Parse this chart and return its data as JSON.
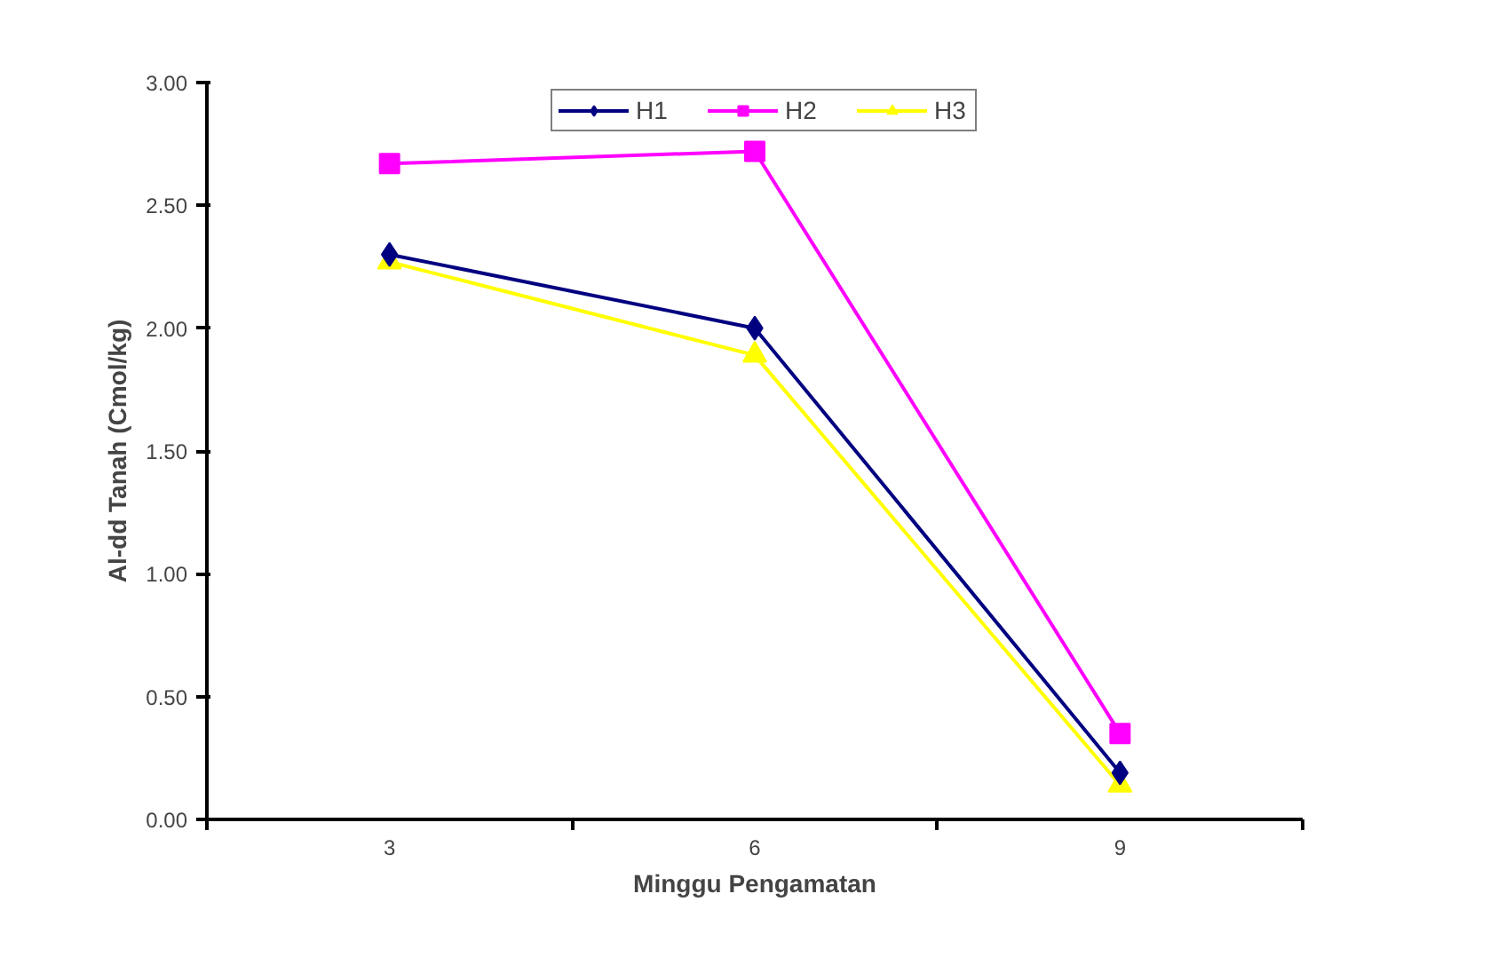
{
  "chart_data": {
    "type": "line",
    "xlabel": "Minggu Pengamatan",
    "ylabel": "Al-dd Tanah (Cmol/kg)",
    "categories": [
      "3",
      "6",
      "9"
    ],
    "series": [
      {
        "name": "H1",
        "color": "#000080",
        "marker": "diamond",
        "values": [
          2.3,
          2.0,
          0.19
        ]
      },
      {
        "name": "H2",
        "color": "#ff00ff",
        "marker": "square",
        "values": [
          2.67,
          2.72,
          0.35
        ]
      },
      {
        "name": "H3",
        "color": "#ffff00",
        "marker": "triangle",
        "values": [
          2.27,
          1.89,
          0.14
        ]
      }
    ],
    "ylim": [
      0,
      3
    ],
    "yticks": [
      {
        "value": 0,
        "label": "0.00"
      },
      {
        "value": 0.5,
        "label": "0.50"
      },
      {
        "value": 1,
        "label": "1.00"
      },
      {
        "value": 1.5,
        "label": "1.50"
      },
      {
        "value": 2,
        "label": "2.00"
      },
      {
        "value": 2.5,
        "label": "2.50"
      },
      {
        "value": 3,
        "label": "3.00"
      }
    ],
    "grid": false,
    "legend": "top",
    "line_style": "solid"
  }
}
